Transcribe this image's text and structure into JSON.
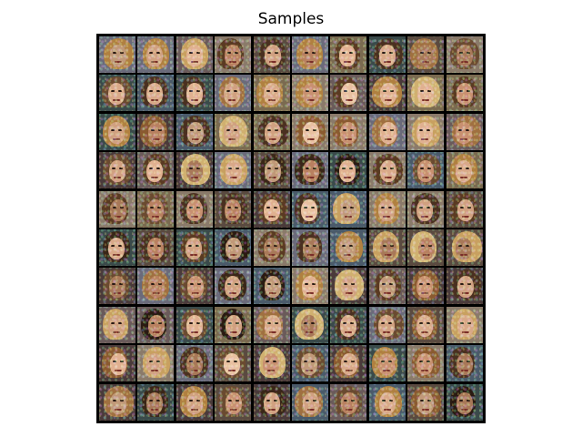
{
  "figure": {
    "title": "Samples"
  },
  "grid": {
    "rows": 10,
    "cols": 10,
    "description_type": "generated-face-samples"
  }
}
